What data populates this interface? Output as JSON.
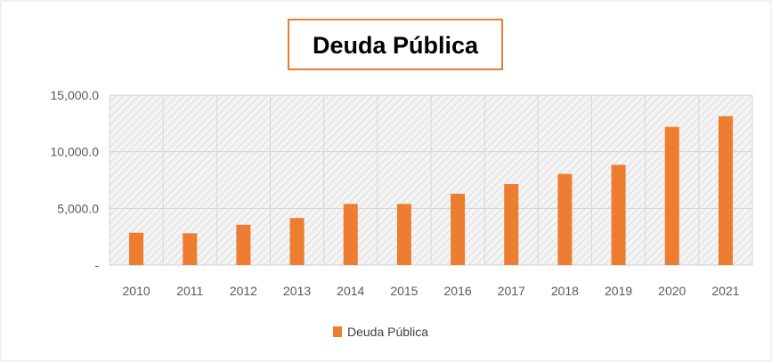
{
  "chart_data": {
    "type": "bar",
    "title": "Deuda Pública",
    "categories": [
      "2010",
      "2011",
      "2012",
      "2013",
      "2014",
      "2015",
      "2016",
      "2017",
      "2018",
      "2019",
      "2020",
      "2021"
    ],
    "series": [
      {
        "name": "Deuda Pública",
        "values": [
          2850,
          2800,
          3550,
          4150,
          5400,
          5400,
          6300,
          7150,
          8050,
          8850,
          12200,
          13150
        ],
        "color": "#ED7D31"
      }
    ],
    "y_ticks": [
      {
        "value": 0,
        "label": "-"
      },
      {
        "value": 5000,
        "label": "5,000.0"
      },
      {
        "value": 10000,
        "label": "10,000.0"
      },
      {
        "value": 15000,
        "label": "15,000.0"
      }
    ],
    "ylim": [
      0,
      15000
    ],
    "xlabel": "",
    "ylabel": "",
    "grid": true,
    "legend_position": "bottom",
    "title_border_color": "#ED7D31",
    "plot_background": "hatched"
  }
}
